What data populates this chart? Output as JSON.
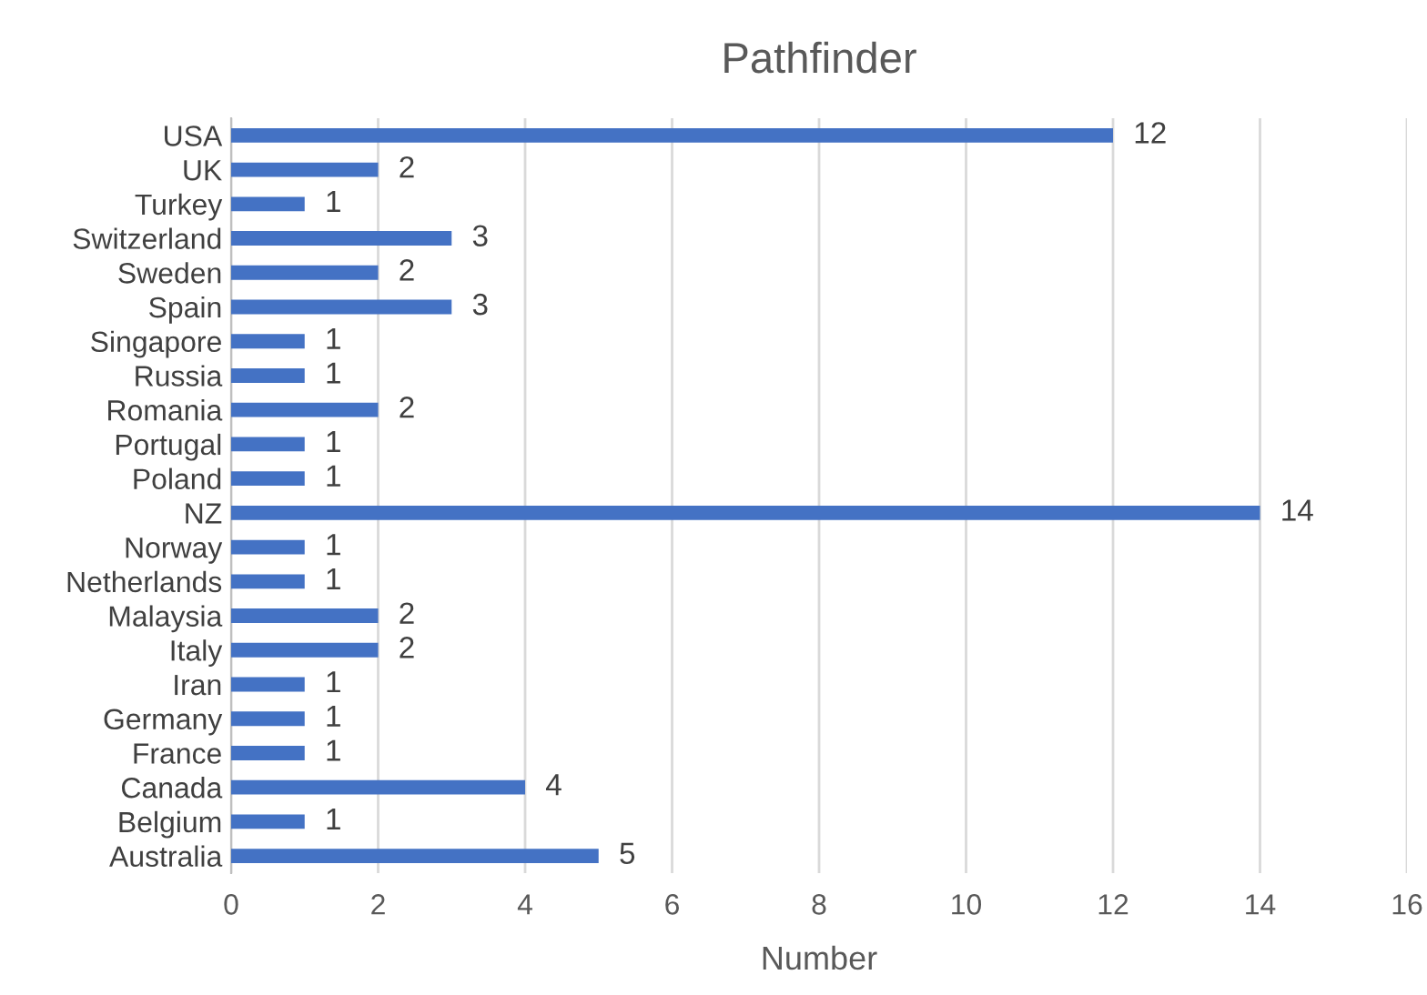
{
  "chart_data": {
    "type": "bar",
    "orientation": "horizontal",
    "title": "Pathfinder",
    "xlabel": "Number",
    "categories": [
      "USA",
      "UK",
      "Turkey",
      "Switzerland",
      "Sweden",
      "Spain",
      "Singapore",
      "Russia",
      "Romania",
      "Portugal",
      "Poland",
      "NZ",
      "Norway",
      "Netherlands",
      "Malaysia",
      "Italy",
      "Iran",
      "Germany",
      "France",
      "Canada",
      "Belgium",
      "Australia"
    ],
    "values": [
      12,
      2,
      1,
      3,
      2,
      3,
      1,
      1,
      2,
      1,
      1,
      14,
      1,
      1,
      2,
      2,
      1,
      1,
      1,
      4,
      1,
      5
    ],
    "color": "#4472c4",
    "xlim": [
      0,
      16
    ],
    "xticks": [
      0,
      2,
      4,
      6,
      8,
      10,
      12,
      14,
      16
    ],
    "grid": "x",
    "data_labels": true
  }
}
